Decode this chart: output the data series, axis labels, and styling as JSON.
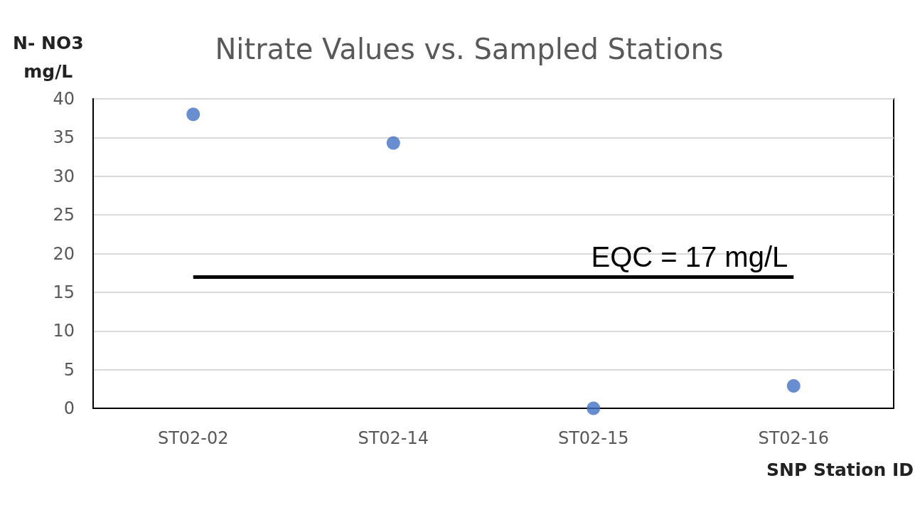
{
  "chart_data": {
    "type": "scatter",
    "title": "Nitrate Values vs. Sampled Stations",
    "xlabel": "SNP Station ID",
    "ylabel": "N- NO3 mg/L",
    "categories": [
      "ST02-02",
      "ST02-14",
      "ST02-15",
      "ST02-16"
    ],
    "values": [
      38,
      34.3,
      0,
      2.9
    ],
    "color": "#4472c4",
    "marker": "circle",
    "ylim": [
      0,
      40
    ],
    "yticks": [
      0,
      5,
      10,
      15,
      20,
      25,
      30,
      35,
      40
    ],
    "grid": "y",
    "ref_lines": [
      {
        "axis": "y",
        "value": 17,
        "label": "EQC = 17 mg/L",
        "color": "#000000",
        "line_style": "solid"
      }
    ]
  }
}
